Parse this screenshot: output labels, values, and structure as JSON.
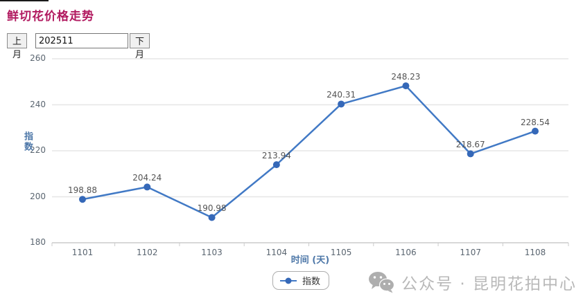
{
  "page": {
    "title": "鲜切花价格走势"
  },
  "controls": {
    "prev_button": "上月",
    "month_input": "202511",
    "next_button": "下月"
  },
  "chart_data": {
    "type": "line",
    "title": "",
    "categories": [
      "1101",
      "1102",
      "1103",
      "1104",
      "1105",
      "1106",
      "1107",
      "1108"
    ],
    "series": [
      {
        "name": "指数",
        "values": [
          198.88,
          204.24,
          190.98,
          213.94,
          240.31,
          248.23,
          218.67,
          228.54
        ]
      }
    ],
    "xlabel": "时间 (天)",
    "ylabel": "指数",
    "ylim": [
      180,
      260
    ],
    "yticks": [
      180,
      200,
      220,
      240,
      260
    ],
    "grid": true,
    "legend_position": "bottom",
    "point_labels_visible": true
  },
  "legend": {
    "label": "指数"
  },
  "watermark": {
    "icon": "wechat-icon",
    "text": "公众号 · 昆明花拍中心"
  },
  "colors": {
    "title": "#b1195f",
    "line": "#4179c5",
    "point": "#3568b8",
    "grid": "#e6e6e6",
    "axis_line": "#cbcbcb",
    "axis_title": "#4d77a8",
    "tick_text": "#5a6570",
    "point_label_text": "#545454",
    "watermark_text": "#b8b8b8"
  }
}
